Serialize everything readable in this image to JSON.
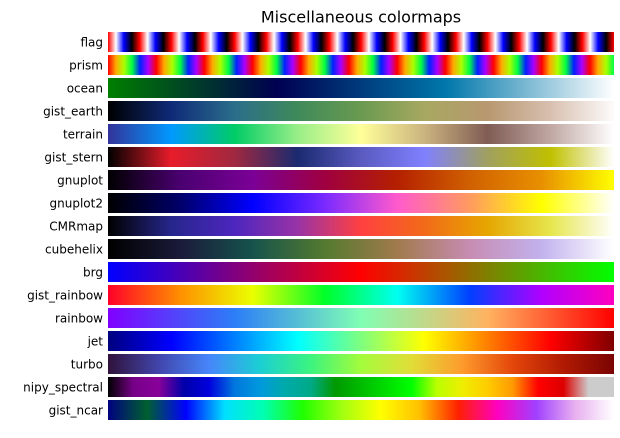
{
  "chart_data": {
    "type": "colormap",
    "title": "Miscellaneous colormaps",
    "rows": [
      {
        "name": "flag",
        "cycles": 16,
        "colors": [
          "#ff0000",
          "#ffffff",
          "#0000ff",
          "#000000",
          "#ff0000"
        ]
      },
      {
        "name": "prism",
        "cycles": 10.5,
        "colors": [
          "#ff0000",
          "#ffaa00",
          "#aaff00",
          "#00ff44",
          "#0022ff",
          "#aa00ff",
          "#ff0000"
        ]
      },
      {
        "name": "ocean",
        "colors": [
          "#007f00",
          "#000050",
          "#0077aa",
          "#ffffff"
        ]
      },
      {
        "name": "gist_earth",
        "colors": [
          "#000000",
          "#0f2a78",
          "#2a6e8a",
          "#3f8a5a",
          "#6a9a50",
          "#a7a860",
          "#b89870",
          "#d8c0b0",
          "#fdfbfb"
        ]
      },
      {
        "name": "terrain",
        "colors": [
          "#333399",
          "#0099ff",
          "#00cc66",
          "#99ee88",
          "#ffff99",
          "#cbb47f",
          "#805c54",
          "#c0a8a3",
          "#ffffff"
        ]
      },
      {
        "name": "gist_stern",
        "colors": [
          "#000000",
          "#e81c2a",
          "#a02840",
          "#1a2a70",
          "#5a5ac0",
          "#8080ff",
          "#a0a060",
          "#c0c000",
          "#ffffff"
        ]
      },
      {
        "name": "gnuplot",
        "colors": [
          "#000000",
          "#4a0070",
          "#7a0096",
          "#a00040",
          "#b42000",
          "#d06000",
          "#e89000",
          "#ffff00"
        ]
      },
      {
        "name": "gnuplot2",
        "colors": [
          "#000000",
          "#00006a",
          "#0000ff",
          "#7a2aff",
          "#ff5acc",
          "#ff9a60",
          "#ffff00",
          "#ffffff"
        ]
      },
      {
        "name": "CMRmap",
        "colors": [
          "#000000",
          "#26268c",
          "#4d26bf",
          "#9933a6",
          "#ff4040",
          "#f26a19",
          "#e6a600",
          "#e6e64d",
          "#ffffff"
        ]
      },
      {
        "name": "cubehelix",
        "colors": [
          "#000000",
          "#1a1a3a",
          "#16534c",
          "#547a2f",
          "#a17a4c",
          "#c78cb2",
          "#c2b2ee",
          "#ffffff"
        ]
      },
      {
        "name": "brg",
        "colors": [
          "#0000ff",
          "#ff0000",
          "#00ff00"
        ]
      },
      {
        "name": "gist_rainbow",
        "colors": [
          "#ff0029",
          "#ff9000",
          "#ebff00",
          "#00ff28",
          "#00fff0",
          "#0040ff",
          "#b000ff",
          "#ff00bf"
        ]
      },
      {
        "name": "rainbow",
        "colors": [
          "#8000ff",
          "#2c7ef7",
          "#80ffb4",
          "#ffb360",
          "#ff0000"
        ]
      },
      {
        "name": "jet",
        "colors": [
          "#00007f",
          "#0000ff",
          "#007fff",
          "#00ffff",
          "#7fff7f",
          "#ffff00",
          "#ff7f00",
          "#ff0000",
          "#7f0000"
        ]
      },
      {
        "name": "turbo",
        "colors": [
          "#30123b",
          "#4145ab",
          "#4686fb",
          "#1bcfd4",
          "#3bf47f",
          "#a4fc3c",
          "#e1dd37",
          "#fe9b2d",
          "#e4460a",
          "#b11a03",
          "#7a0403"
        ]
      },
      {
        "name": "nipy_spectral",
        "colors": [
          "#000000",
          "#770088",
          "#880099",
          "#0000aa",
          "#0000dd",
          "#0077dd",
          "#0099dd",
          "#00aaaa",
          "#00aa88",
          "#009900",
          "#00bb00",
          "#00dd00",
          "#00ff00",
          "#bbff00",
          "#eeee00",
          "#ffcc00",
          "#ff9900",
          "#ff0000",
          "#dd0000",
          "#cccccc",
          "#cccccc"
        ]
      },
      {
        "name": "gist_ncar",
        "colors": [
          "#000080",
          "#006030",
          "#0000ff",
          "#00e0ff",
          "#00ffb0",
          "#20ff00",
          "#a0ff10",
          "#ffff00",
          "#ffc000",
          "#ff2000",
          "#ff00c0",
          "#a040ff",
          "#e8b0f0",
          "#ffffff"
        ]
      }
    ]
  }
}
